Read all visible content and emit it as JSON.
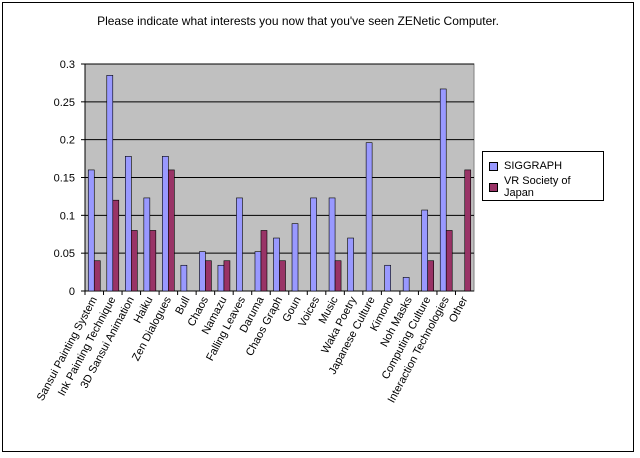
{
  "title": "Please indicate what interests you now that you've seen ZENetic Computer.",
  "colors": {
    "plot_bg": "#c0c0c0",
    "siggraph": "#9999ff",
    "vr": "#993366",
    "grid": "#000000"
  },
  "chart_data": {
    "type": "bar",
    "title": "Please indicate what interests you now that you've seen ZENetic Computer.",
    "xlabel": "",
    "ylabel": "",
    "ylim": [
      0,
      0.3
    ],
    "yticks": [
      "0",
      "0.05",
      "0.1",
      "0.15",
      "0.2",
      "0.25",
      "0.3"
    ],
    "grid": true,
    "legend_position": "right",
    "categories": [
      "Sansui Painting System",
      "Ink Painting Technique",
      "3D Sansui Animation",
      "Haiku",
      "Zen Dialogues",
      "Bull",
      "Chaos",
      "Namazu",
      "Falling Leaves",
      "Daruma",
      "Chaos Graph",
      "Goun",
      "Voices",
      "Music",
      "Waka Poetry",
      "Japanese Culture",
      "Kimono",
      "Noh Masks",
      "Computing Culture",
      "Interaction Technologies",
      "Other"
    ],
    "series": [
      {
        "name": "SIGGRAPH",
        "values": [
          0.16,
          0.285,
          0.178,
          0.123,
          0.178,
          0.034,
          0.052,
          0.034,
          0.123,
          0.052,
          0.07,
          0.089,
          0.123,
          0.123,
          0.07,
          0.196,
          0.034,
          0.018,
          0.107,
          0.267,
          0
        ]
      },
      {
        "name": "VR Society of Japan",
        "values": [
          0.04,
          0.12,
          0.08,
          0.08,
          0.16,
          0,
          0.04,
          0.04,
          0,
          0.08,
          0.04,
          0,
          0,
          0.04,
          0,
          0,
          0,
          0,
          0.04,
          0.08,
          0.16
        ]
      }
    ]
  }
}
